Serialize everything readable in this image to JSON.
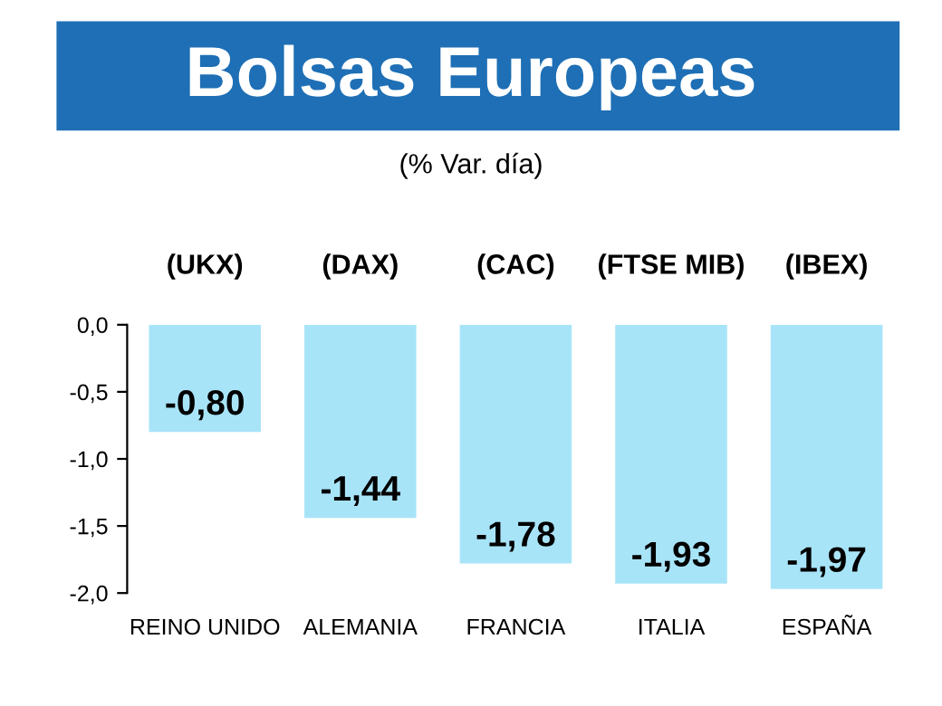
{
  "chart_data": {
    "type": "bar",
    "title": "Bolsas Europeas",
    "subtitle": "(% Var. día)",
    "categories": [
      "REINO UNIDO",
      "ALEMANIA",
      "FRANCIA",
      "ITALIA",
      "ESPAÑA"
    ],
    "values": [
      -0.8,
      -1.44,
      -1.78,
      -1.93,
      -1.97
    ],
    "value_labels": [
      "-0,80",
      "-1,44",
      "-1,78",
      "-1,93",
      "-1,97"
    ],
    "annotations": [
      "(UKX)",
      "(DAX)",
      "(CAC)",
      "(FTSE MIB)",
      "(IBEX)"
    ],
    "color": "#a8e4f8",
    "ylim": [
      -2.0,
      0.0
    ],
    "yticks": [
      {
        "value": 0.0,
        "label": "0,0"
      },
      {
        "value": -0.5,
        "label": "-0,5"
      },
      {
        "value": -1.0,
        "label": "-1,0"
      },
      {
        "value": -1.5,
        "label": "-1,5"
      },
      {
        "value": -2.0,
        "label": "-2,0"
      }
    ],
    "grid": false
  }
}
